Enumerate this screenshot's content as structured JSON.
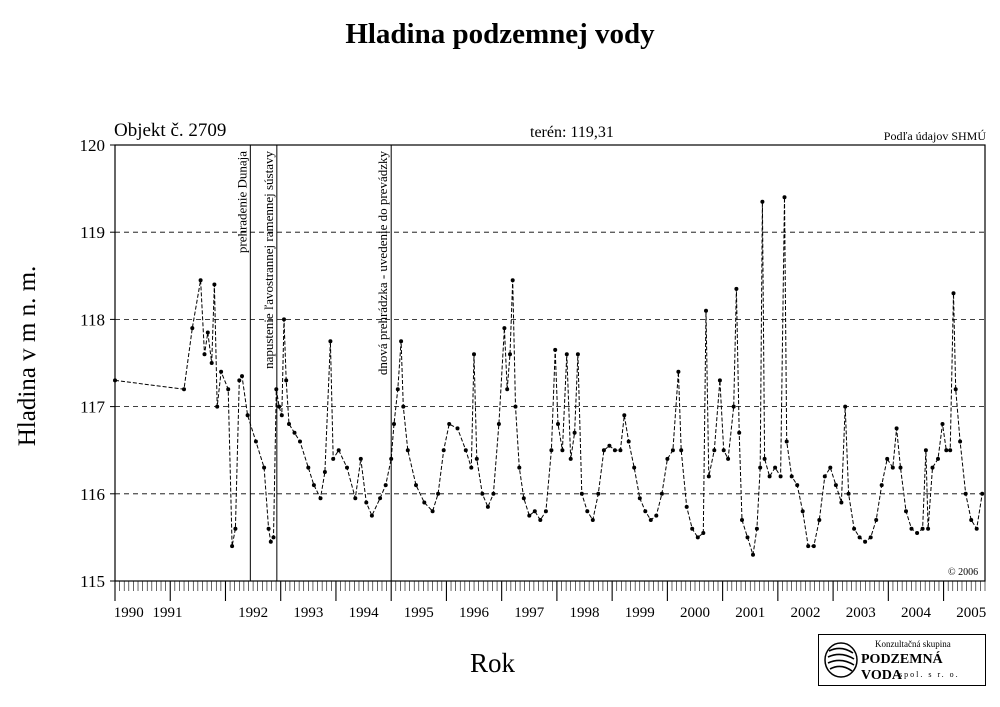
{
  "header": {
    "title": "Hladina podzemnej vody",
    "object_label": "Objekt č. 2709",
    "terrain_label": "terén: 119,31",
    "source_label": "Podľa údajov SHMÚ",
    "copyright": "© 2006"
  },
  "logo": {
    "line1": "Konzultačná skupina",
    "line2": "PODZEMNÁ VODA",
    "line3": "spol. s r. o."
  },
  "chart_data": {
    "type": "line",
    "title": "Hladina podzemnej vody",
    "xlabel": "Rok",
    "ylabel": "Hladina v m n. m.",
    "ylim": [
      115,
      120
    ],
    "xlim": [
      1990.0,
      2005.75
    ],
    "yticks": [
      115,
      116,
      117,
      118,
      119,
      120
    ],
    "xtick_labels": [
      "1990",
      "1991",
      "1992",
      "1993",
      "1994",
      "1995",
      "1996",
      "1997",
      "1998",
      "1999",
      "2000",
      "2001",
      "2002",
      "2003",
      "2004",
      "2005"
    ],
    "grid": "horizontal dashed",
    "annotations": [
      {
        "x": 1992.45,
        "text": "prehradenie Dunaja"
      },
      {
        "x": 1992.93,
        "text": "napustenie ľavostrannej ramennej sústavy"
      },
      {
        "x": 1995.0,
        "text": "dnová prehrádzka - uvedenie do prevádzky"
      }
    ],
    "series": [
      {
        "values": [
          [
            1990.0,
            117.3
          ],
          [
            1991.25,
            117.2
          ],
          [
            1991.4,
            117.9
          ],
          [
            1991.55,
            118.45
          ],
          [
            1991.62,
            117.6
          ],
          [
            1991.68,
            117.85
          ],
          [
            1991.75,
            117.5
          ],
          [
            1991.8,
            118.4
          ],
          [
            1991.85,
            117.0
          ],
          [
            1991.92,
            117.4
          ],
          [
            1992.05,
            117.2
          ],
          [
            1992.12,
            115.4
          ],
          [
            1992.18,
            115.6
          ],
          [
            1992.25,
            117.3
          ],
          [
            1992.3,
            117.35
          ],
          [
            1992.4,
            116.9
          ],
          [
            1992.55,
            116.6
          ],
          [
            1992.7,
            116.3
          ],
          [
            1992.78,
            115.6
          ],
          [
            1992.82,
            115.45
          ],
          [
            1992.87,
            115.5
          ],
          [
            1992.92,
            117.2
          ],
          [
            1992.97,
            117.0
          ],
          [
            1993.02,
            116.9
          ],
          [
            1993.06,
            118.0
          ],
          [
            1993.1,
            117.3
          ],
          [
            1993.15,
            116.8
          ],
          [
            1993.25,
            116.7
          ],
          [
            1993.35,
            116.6
          ],
          [
            1993.5,
            116.3
          ],
          [
            1993.6,
            116.1
          ],
          [
            1993.72,
            115.95
          ],
          [
            1993.8,
            116.25
          ],
          [
            1993.9,
            117.75
          ],
          [
            1993.95,
            116.4
          ],
          [
            1994.05,
            116.5
          ],
          [
            1994.2,
            116.3
          ],
          [
            1994.35,
            115.95
          ],
          [
            1994.45,
            116.4
          ],
          [
            1994.55,
            115.9
          ],
          [
            1994.65,
            115.75
          ],
          [
            1994.8,
            115.95
          ],
          [
            1994.9,
            116.1
          ],
          [
            1995.0,
            116.4
          ],
          [
            1995.05,
            116.8
          ],
          [
            1995.12,
            117.2
          ],
          [
            1995.18,
            117.75
          ],
          [
            1995.22,
            117.0
          ],
          [
            1995.3,
            116.5
          ],
          [
            1995.45,
            116.1
          ],
          [
            1995.6,
            115.9
          ],
          [
            1995.75,
            115.8
          ],
          [
            1995.85,
            116.0
          ],
          [
            1995.95,
            116.5
          ],
          [
            1996.05,
            116.8
          ],
          [
            1996.2,
            116.75
          ],
          [
            1996.35,
            116.5
          ],
          [
            1996.45,
            116.3
          ],
          [
            1996.5,
            117.6
          ],
          [
            1996.55,
            116.4
          ],
          [
            1996.65,
            116.0
          ],
          [
            1996.75,
            115.85
          ],
          [
            1996.85,
            116.0
          ],
          [
            1996.95,
            116.8
          ],
          [
            1997.05,
            117.9
          ],
          [
            1997.1,
            117.2
          ],
          [
            1997.15,
            117.6
          ],
          [
            1997.2,
            118.45
          ],
          [
            1997.25,
            117.0
          ],
          [
            1997.32,
            116.3
          ],
          [
            1997.4,
            115.95
          ],
          [
            1997.5,
            115.75
          ],
          [
            1997.6,
            115.8
          ],
          [
            1997.7,
            115.7
          ],
          [
            1997.8,
            115.8
          ],
          [
            1997.9,
            116.5
          ],
          [
            1997.97,
            117.65
          ],
          [
            1998.02,
            116.8
          ],
          [
            1998.1,
            116.5
          ],
          [
            1998.18,
            117.6
          ],
          [
            1998.25,
            116.4
          ],
          [
            1998.32,
            116.7
          ],
          [
            1998.38,
            117.6
          ],
          [
            1998.45,
            116.0
          ],
          [
            1998.55,
            115.8
          ],
          [
            1998.65,
            115.7
          ],
          [
            1998.75,
            116.0
          ],
          [
            1998.85,
            116.5
          ],
          [
            1998.95,
            116.55
          ],
          [
            1999.05,
            116.5
          ],
          [
            1999.15,
            116.5
          ],
          [
            1999.22,
            116.9
          ],
          [
            1999.3,
            116.6
          ],
          [
            1999.4,
            116.3
          ],
          [
            1999.5,
            115.95
          ],
          [
            1999.6,
            115.8
          ],
          [
            1999.7,
            115.7
          ],
          [
            1999.8,
            115.75
          ],
          [
            1999.9,
            116.0
          ],
          [
            2000.0,
            116.4
          ],
          [
            2000.1,
            116.5
          ],
          [
            2000.2,
            117.4
          ],
          [
            2000.25,
            116.5
          ],
          [
            2000.35,
            115.85
          ],
          [
            2000.45,
            115.6
          ],
          [
            2000.55,
            115.5
          ],
          [
            2000.65,
            115.55
          ],
          [
            2000.7,
            118.1
          ],
          [
            2000.75,
            116.2
          ],
          [
            2000.85,
            116.5
          ],
          [
            2000.95,
            117.3
          ],
          [
            2001.02,
            116.5
          ],
          [
            2001.1,
            116.4
          ],
          [
            2001.2,
            117.0
          ],
          [
            2001.25,
            118.35
          ],
          [
            2001.3,
            116.7
          ],
          [
            2001.35,
            115.7
          ],
          [
            2001.45,
            115.5
          ],
          [
            2001.55,
            115.3
          ],
          [
            2001.62,
            115.6
          ],
          [
            2001.68,
            116.3
          ],
          [
            2001.72,
            119.35
          ],
          [
            2001.76,
            116.4
          ],
          [
            2001.85,
            116.2
          ],
          [
            2001.95,
            116.3
          ],
          [
            2002.05,
            116.2
          ],
          [
            2002.12,
            119.4
          ],
          [
            2002.16,
            116.6
          ],
          [
            2002.25,
            116.2
          ],
          [
            2002.35,
            116.1
          ],
          [
            2002.45,
            115.8
          ],
          [
            2002.55,
            115.4
          ],
          [
            2002.65,
            115.4
          ],
          [
            2002.75,
            115.7
          ],
          [
            2002.85,
            116.2
          ],
          [
            2002.95,
            116.3
          ],
          [
            2003.05,
            116.1
          ],
          [
            2003.15,
            115.9
          ],
          [
            2003.22,
            117.0
          ],
          [
            2003.28,
            116.0
          ],
          [
            2003.38,
            115.6
          ],
          [
            2003.48,
            115.5
          ],
          [
            2003.58,
            115.45
          ],
          [
            2003.68,
            115.5
          ],
          [
            2003.78,
            115.7
          ],
          [
            2003.88,
            116.1
          ],
          [
            2003.98,
            116.4
          ],
          [
            2004.08,
            116.3
          ],
          [
            2004.15,
            116.75
          ],
          [
            2004.22,
            116.3
          ],
          [
            2004.32,
            115.8
          ],
          [
            2004.42,
            115.6
          ],
          [
            2004.52,
            115.55
          ],
          [
            2004.62,
            115.6
          ],
          [
            2004.68,
            116.5
          ],
          [
            2004.72,
            115.6
          ],
          [
            2004.8,
            116.3
          ],
          [
            2004.9,
            116.4
          ],
          [
            2004.98,
            116.8
          ],
          [
            2005.05,
            116.5
          ],
          [
            2005.12,
            116.5
          ],
          [
            2005.18,
            118.3
          ],
          [
            2005.22,
            117.2
          ],
          [
            2005.3,
            116.6
          ],
          [
            2005.4,
            116.0
          ],
          [
            2005.5,
            115.7
          ],
          [
            2005.6,
            115.6
          ],
          [
            2005.7,
            116.0
          ]
        ]
      }
    ]
  }
}
